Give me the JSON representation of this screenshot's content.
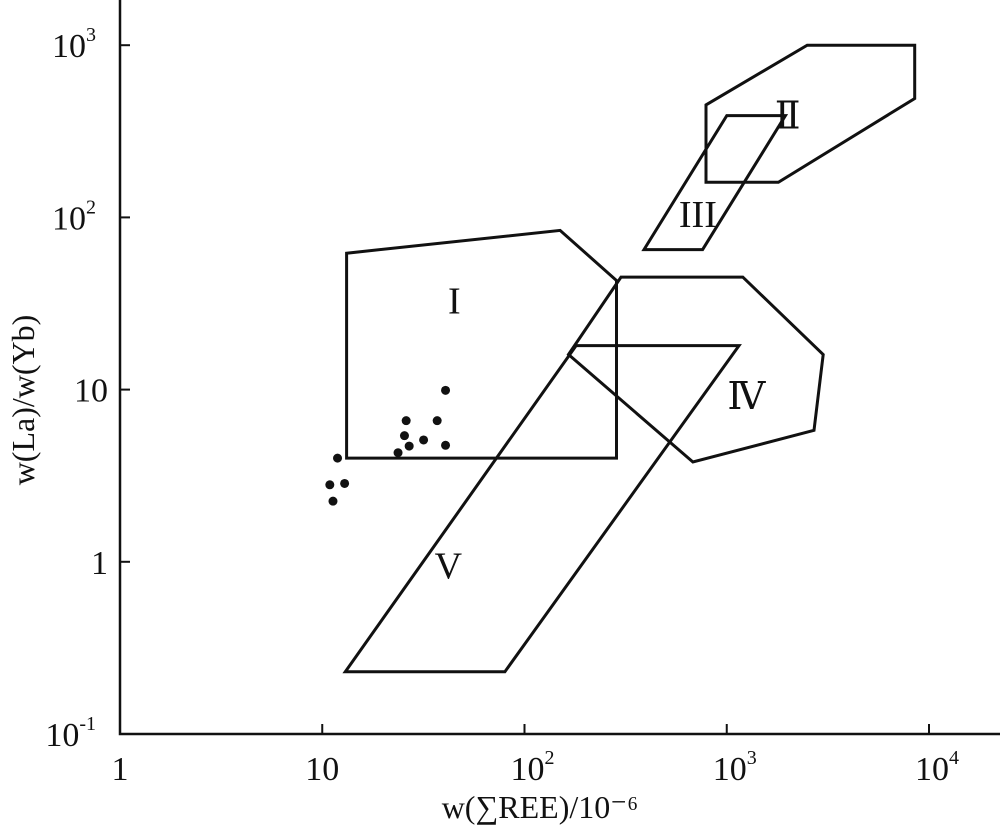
{
  "chart_data": {
    "type": "scatter",
    "title": "",
    "xlabel": "w(∑REE)/10⁻⁶",
    "ylabel": "w(La)/w(Yb)",
    "xscale": "log",
    "yscale": "log",
    "xlim": [
      1,
      20000
    ],
    "ylim": [
      0.1,
      2500
    ],
    "grid": false,
    "xticks": [
      {
        "value": 1,
        "base": "1",
        "exp": ""
      },
      {
        "value": 10,
        "base": "10",
        "exp": ""
      },
      {
        "value": 100,
        "base": "10",
        "exp": "2"
      },
      {
        "value": 1000,
        "base": "10",
        "exp": "3"
      },
      {
        "value": 10000,
        "base": "10",
        "exp": "4"
      }
    ],
    "yticks": [
      {
        "value": 0.1,
        "base": "10",
        "exp": "-1"
      },
      {
        "value": 1,
        "base": "1",
        "exp": ""
      },
      {
        "value": 10,
        "base": "10",
        "exp": ""
      },
      {
        "value": 100,
        "base": "10",
        "exp": "2"
      },
      {
        "value": 1000,
        "base": "10",
        "exp": "3"
      }
    ],
    "points": [
      {
        "x": 11.9,
        "y": 4.0
      },
      {
        "x": 10.9,
        "y": 2.8
      },
      {
        "x": 12.9,
        "y": 2.85
      },
      {
        "x": 11.3,
        "y": 2.25
      },
      {
        "x": 26.0,
        "y": 6.6
      },
      {
        "x": 25.5,
        "y": 5.4
      },
      {
        "x": 26.9,
        "y": 4.7
      },
      {
        "x": 31.7,
        "y": 5.1
      },
      {
        "x": 23.7,
        "y": 4.3
      },
      {
        "x": 37.0,
        "y": 6.6
      },
      {
        "x": 40.7,
        "y": 4.75
      },
      {
        "x": 40.7,
        "y": 9.9
      }
    ],
    "regions": [
      {
        "id": "I",
        "label": "I",
        "label_at": {
          "x": 45,
          "y": 33
        },
        "vertices": [
          {
            "x": 13.2,
            "y": 4.0
          },
          {
            "x": 285,
            "y": 4.0
          },
          {
            "x": 285,
            "y": 43
          },
          {
            "x": 150,
            "y": 84
          },
          {
            "x": 13.2,
            "y": 62
          }
        ]
      },
      {
        "id": "II",
        "label": "Ⅱ",
        "label_at": {
          "x": 2000,
          "y": 390
        },
        "vertices": [
          {
            "x": 790,
            "y": 160
          },
          {
            "x": 1800,
            "y": 160
          },
          {
            "x": 8500,
            "y": 490
          },
          {
            "x": 8500,
            "y": 1000
          },
          {
            "x": 2500,
            "y": 1000
          },
          {
            "x": 790,
            "y": 450
          }
        ]
      },
      {
        "id": "III",
        "label": "III",
        "label_at": {
          "x": 720,
          "y": 105
        },
        "vertices": [
          {
            "x": 390,
            "y": 65
          },
          {
            "x": 760,
            "y": 65
          },
          {
            "x": 1950,
            "y": 390
          },
          {
            "x": 1000,
            "y": 390
          }
        ]
      },
      {
        "id": "IV",
        "label": "Ⅳ",
        "label_at": {
          "x": 1250,
          "y": 9.2
        },
        "vertices": [
          {
            "x": 165,
            "y": 16
          },
          {
            "x": 300,
            "y": 45
          },
          {
            "x": 1200,
            "y": 45
          },
          {
            "x": 3000,
            "y": 16
          },
          {
            "x": 2700,
            "y": 5.8
          },
          {
            "x": 680,
            "y": 3.8
          }
        ]
      },
      {
        "id": "V",
        "label": "V",
        "label_at": {
          "x": 42,
          "y": 0.95
        },
        "vertices": [
          {
            "x": 13,
            "y": 0.23
          },
          {
            "x": 80,
            "y": 0.23
          },
          {
            "x": 1150,
            "y": 18
          },
          {
            "x": 180,
            "y": 18
          }
        ]
      }
    ]
  }
}
